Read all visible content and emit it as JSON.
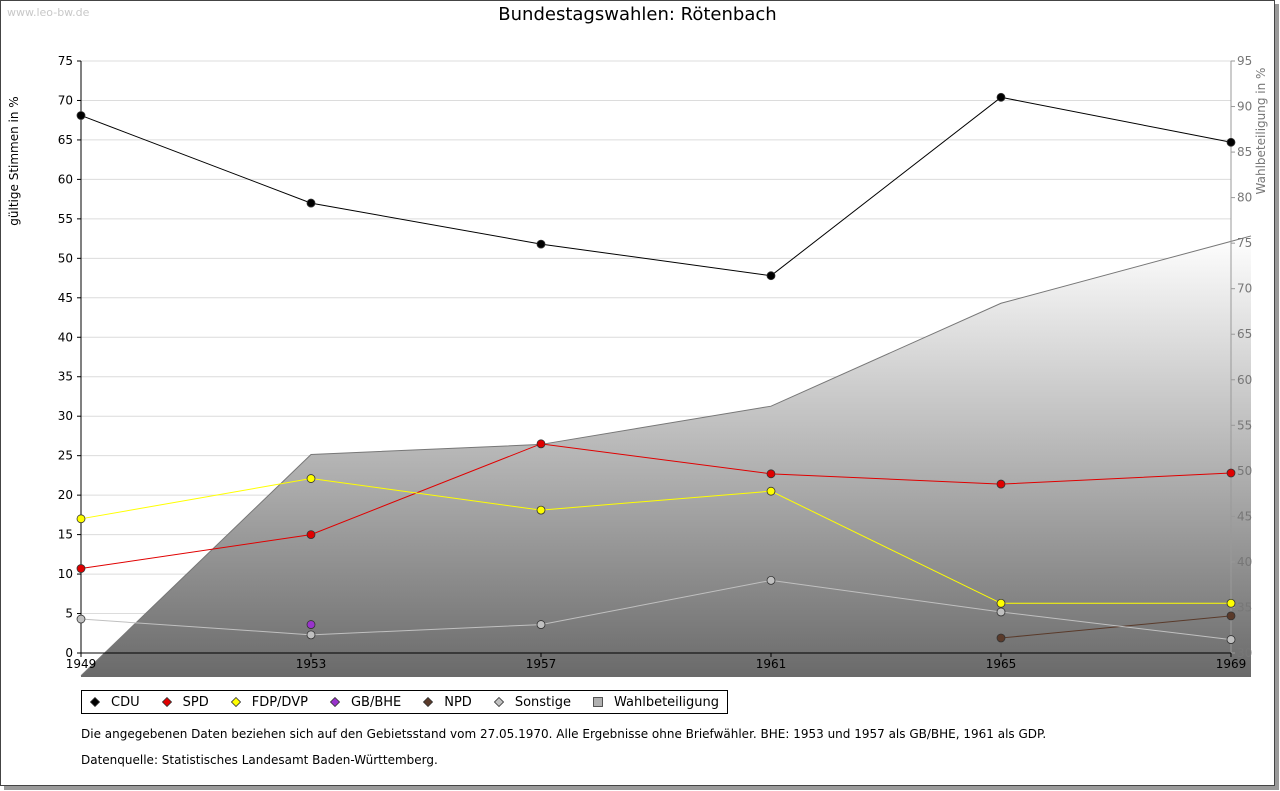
{
  "watermark": "www.leo-bw.de",
  "chart_data": {
    "type": "line",
    "title": "Bundestagswahlen: Rötenbach",
    "ylabel": "gültige Stimmen in %",
    "y2label": "Wahlbeteiligung in %",
    "x": [
      1949,
      1953,
      1957,
      1961,
      1965,
      1969
    ],
    "ylim": [
      0,
      75
    ],
    "y2lim": [
      30,
      95
    ],
    "yticks": [
      0,
      5,
      10,
      15,
      20,
      25,
      30,
      35,
      40,
      45,
      50,
      55,
      60,
      65,
      70,
      75
    ],
    "y2ticks": [
      30,
      35,
      40,
      45,
      50,
      55,
      60,
      65,
      70,
      75,
      80,
      85,
      90,
      95
    ],
    "grid": true,
    "legend_position": "bottom",
    "series": [
      {
        "name": "CDU",
        "color": "#000000",
        "values": [
          68.1,
          57.0,
          51.8,
          47.8,
          70.4,
          64.7
        ]
      },
      {
        "name": "SPD",
        "color": "#e00000",
        "values": [
          10.7,
          15.0,
          26.5,
          22.7,
          21.4,
          22.8
        ]
      },
      {
        "name": "FDP/DVP",
        "color": "#ffff00",
        "values": [
          17.0,
          22.1,
          18.1,
          20.5,
          6.3,
          6.3
        ]
      },
      {
        "name": "GB/BHE",
        "color": "#9933cc",
        "values": [
          null,
          3.6,
          null,
          null,
          null,
          null
        ]
      },
      {
        "name": "NPD",
        "color": "#5a3a2a",
        "values": [
          null,
          null,
          null,
          null,
          1.9,
          4.7
        ]
      },
      {
        "name": "Sonstige",
        "color": "#c0c0c0",
        "values": [
          4.3,
          2.3,
          3.6,
          9.2,
          5.2,
          1.7
        ]
      }
    ],
    "area": {
      "name": "Wahlbeteiligung",
      "color": "#b0b0b0",
      "values": [
        27.5,
        51.8,
        52.9,
        57.1,
        68.4,
        75.2
      ]
    }
  },
  "notes": {
    "line1": "Die angegebenen Daten beziehen sich auf den Gebietsstand vom 27.05.1970. Alle Ergebnisse ohne Briefwähler. BHE: 1953 und 1957 als GB/BHE, 1961 als GDP.",
    "line2": "Datenquelle: Statistisches Landesamt Baden-Württemberg."
  }
}
